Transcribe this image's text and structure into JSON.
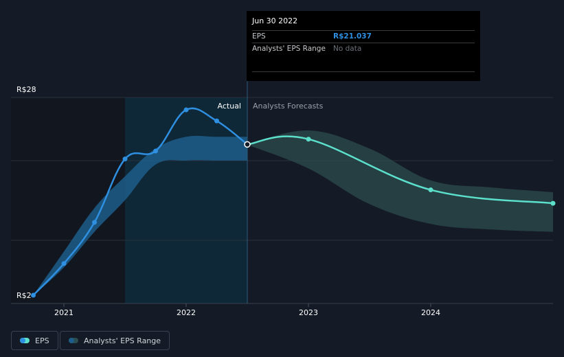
{
  "chart_data": {
    "type": "line",
    "y_axis_labels": {
      "top": "R$28",
      "bottom": "R$2"
    },
    "ylim": [
      2,
      28
    ],
    "x_tick_labels": [
      "2021",
      "2022",
      "2023",
      "2024"
    ],
    "x_ticks": [
      2021,
      2022,
      2023,
      2024
    ],
    "xlim": [
      2020.6,
      2024.99
    ],
    "region_labels": {
      "actual": "Actual",
      "forecast": "Analysts Forecasts"
    },
    "divider_x": 2022.5,
    "highlight_start": 2021.5,
    "series": [
      {
        "name": "EPS",
        "color": "#2f8fe0",
        "x": [
          2020.75,
          2021.0,
          2021.25,
          2021.5,
          2021.75,
          2022.0,
          2022.25,
          2022.5
        ],
        "y": [
          2.0,
          6.0,
          11.2,
          19.2,
          20.2,
          25.4,
          24.0,
          21.037
        ]
      },
      {
        "name": "EPS",
        "color": "#5ce0cc",
        "x": [
          2022.5,
          2023.0,
          2024.0,
          2025.0
        ],
        "y": [
          21.037,
          21.7,
          15.3,
          13.6
        ]
      }
    ],
    "ranges": [
      {
        "name": "Analysts' EPS Range",
        "color": "#2f8fe0",
        "x": [
          2020.75,
          2021.0,
          2021.25,
          2021.5,
          2021.75,
          2022.0,
          2022.25,
          2022.5
        ],
        "low": [
          2.0,
          5.5,
          10.0,
          14.0,
          18.5,
          19.0,
          19.0,
          19.0
        ],
        "high": [
          2.0,
          7.5,
          13.0,
          17.0,
          20.5,
          22.0,
          22.0,
          22.0
        ]
      },
      {
        "name": "Analysts' EPS Range",
        "color": "#5ce0cc",
        "x": [
          2022.5,
          2023.0,
          2023.5,
          2024.0,
          2024.5,
          2025.0
        ],
        "low": [
          21.0,
          18.0,
          13.5,
          11.0,
          10.3,
          10.0
        ],
        "high": [
          21.0,
          22.8,
          20.5,
          16.5,
          15.6,
          15.0
        ]
      }
    ]
  },
  "tooltip": {
    "date": "Jun 30 2022",
    "eps_label": "EPS",
    "eps_value": "R$21.037",
    "range_label": "Analysts' EPS Range",
    "range_value": "No data"
  },
  "legend": {
    "eps_label": "EPS",
    "range_label": "Analysts' EPS Range"
  },
  "colors": {
    "background": "#151b26",
    "eps_actual": "#2f8fe0",
    "eps_forecast": "#5ce0cc",
    "range_actual": "#1d5d8a",
    "range_forecast": "#2b4c4e"
  }
}
